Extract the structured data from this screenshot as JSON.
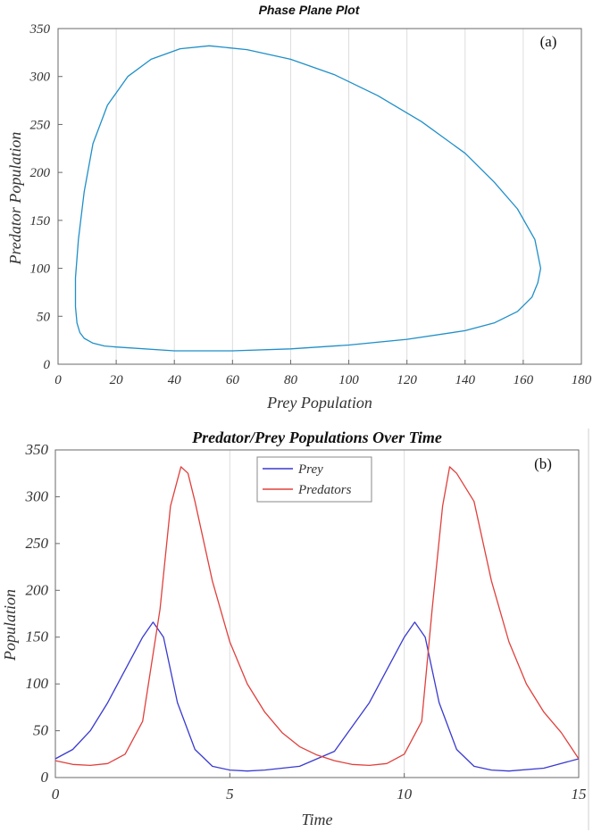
{
  "chart_data": [
    {
      "type": "line",
      "title": "Phase Plane Plot",
      "panel_label": "(a)",
      "xlabel": "Prey Population",
      "ylabel": "Predator Population",
      "xlim": [
        0,
        180
      ],
      "ylim": [
        0,
        350
      ],
      "xticks": [
        "0",
        "20",
        "40",
        "60",
        "80",
        "100",
        "120",
        "140",
        "160",
        "180"
      ],
      "yticks": [
        "0",
        "50",
        "100",
        "150",
        "200",
        "250",
        "300",
        "350"
      ],
      "grid": "vertical",
      "series": [
        {
          "color": "#1f8fc9",
          "x": [
            20,
            40,
            60,
            80,
            100,
            120,
            140,
            150,
            158,
            163,
            165,
            166,
            164,
            158,
            150,
            140,
            125,
            110,
            95,
            80,
            65,
            52,
            42,
            32,
            24,
            17,
            12,
            9,
            7,
            6,
            6,
            6.5,
            7.5,
            9,
            12,
            16,
            20
          ],
          "y": [
            18,
            14,
            14,
            16,
            20,
            26,
            35,
            43,
            55,
            70,
            85,
            100,
            130,
            162,
            190,
            220,
            253,
            280,
            302,
            318,
            328,
            332,
            329,
            318,
            300,
            270,
            230,
            180,
            130,
            90,
            60,
            43,
            33,
            27,
            22,
            19,
            18
          ]
        }
      ]
    },
    {
      "type": "line",
      "title": "Predator/Prey Populations Over Time",
      "panel_label": "(b)",
      "xlabel": "Time",
      "ylabel": "Population",
      "xlim": [
        0,
        15
      ],
      "ylim": [
        0,
        350
      ],
      "xticks": [
        "0",
        "5",
        "10",
        "15"
      ],
      "yticks": [
        "0",
        "50",
        "100",
        "150",
        "200",
        "250",
        "300",
        "350"
      ],
      "grid": "vertical",
      "legend_position": "top-center",
      "series": [
        {
          "name": "Prey",
          "color": "#3a3ad0",
          "x": [
            0,
            0.5,
            1,
            1.5,
            2,
            2.5,
            2.8,
            3.1,
            3.5,
            4,
            4.5,
            5,
            5.5,
            6,
            7,
            8,
            9,
            9.5,
            10,
            10.3,
            10.6,
            11,
            11.5,
            12,
            12.5,
            13,
            14,
            15
          ],
          "y": [
            20,
            30,
            50,
            80,
            115,
            150,
            166,
            150,
            80,
            30,
            12,
            8,
            7,
            8,
            12,
            28,
            80,
            115,
            150,
            166,
            150,
            80,
            30,
            12,
            8,
            7,
            10,
            20
          ]
        },
        {
          "name": "Predators",
          "color": "#e0403c",
          "x": [
            0,
            0.5,
            1,
            1.5,
            2,
            2.5,
            3,
            3.3,
            3.6,
            3.8,
            4,
            4.5,
            5,
            5.5,
            6,
            6.5,
            7,
            7.5,
            8,
            8.5,
            9,
            9.5,
            10,
            10.5,
            10.8,
            11.1,
            11.3,
            11.5,
            12,
            12.5,
            13,
            13.5,
            14,
            14.5,
            15
          ],
          "y": [
            18,
            14,
            13,
            15,
            25,
            60,
            180,
            290,
            332,
            325,
            295,
            210,
            145,
            100,
            70,
            48,
            33,
            24,
            18,
            14,
            13,
            15,
            25,
            60,
            180,
            290,
            332,
            325,
            295,
            210,
            145,
            100,
            70,
            48,
            20
          ]
        }
      ]
    }
  ]
}
